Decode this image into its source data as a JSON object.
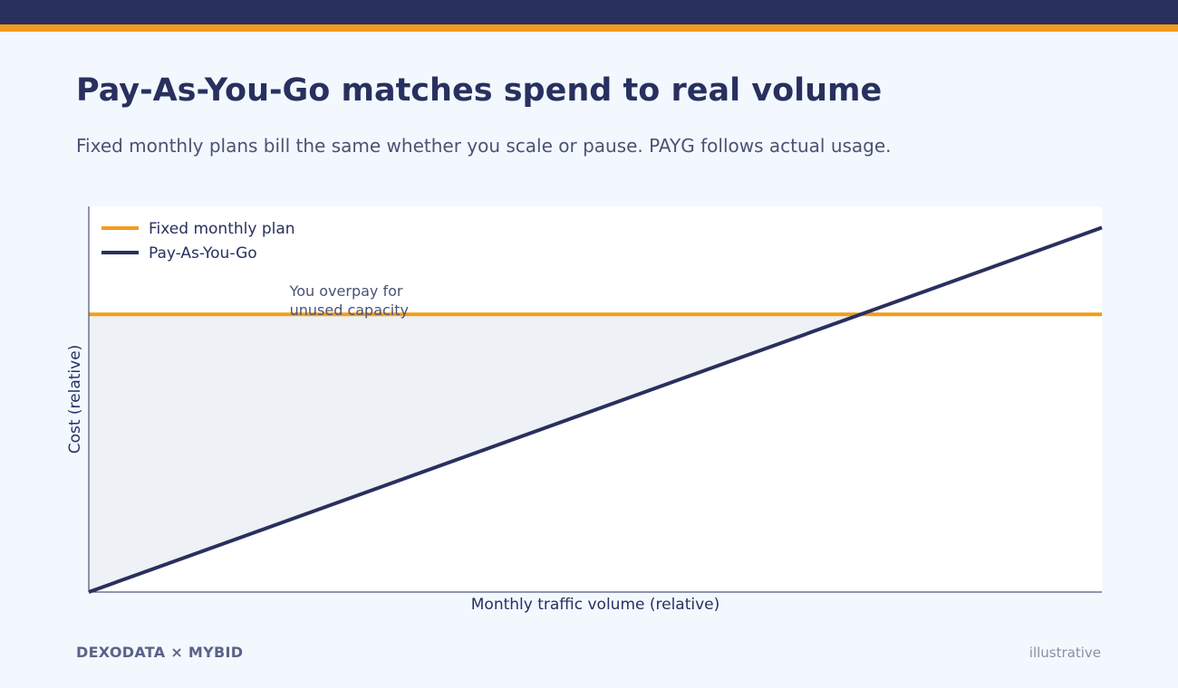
{
  "header": {
    "title": "Pay-As-You-Go matches spend to real volume",
    "subtitle": "Fixed monthly plans bill the same whether you scale or pause. PAYG follows actual usage."
  },
  "colors": {
    "navy": "#29305e",
    "orange": "#f29c1d",
    "overpay_fill": "#eef1f5"
  },
  "chart_data": {
    "type": "line",
    "xlabel": "Monthly traffic volume (relative)",
    "ylabel": "Cost (relative)",
    "xlim": [
      0,
      100
    ],
    "ylim": [
      0,
      100
    ],
    "grid": false,
    "legend_position": "top-left",
    "series": [
      {
        "name": "Fixed monthly plan",
        "color": "#f29c1d",
        "x": [
          0,
          100
        ],
        "y": [
          72,
          72
        ]
      },
      {
        "name": "Pay-As-You-Go",
        "color": "#29305e",
        "x": [
          0,
          100
        ],
        "y": [
          0,
          94.5
        ]
      }
    ],
    "annotations": [
      {
        "text_lines": [
          "You overpay for",
          "unused capacity"
        ],
        "x": 20,
        "y": 80
      }
    ],
    "shaded_region": {
      "label": "unused capacity",
      "between": [
        "Fixed monthly plan",
        "Pay-As-You-Go"
      ],
      "where": "fixed above payg"
    }
  },
  "footer": {
    "brand": "DEXODATA  ×  MYBID",
    "note": "illustrative"
  }
}
